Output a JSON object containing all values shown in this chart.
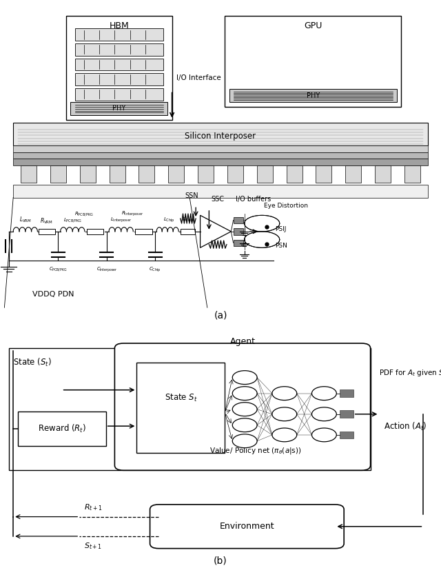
{
  "bg_color": "#ffffff",
  "fig_width": 6.4,
  "fig_height": 8.24,
  "part_a_label": "(a)",
  "part_b_label": "(b)",
  "hbm": "HBM",
  "gpu": "GPU",
  "io_interface": "I/O Interface",
  "phy": "PHY",
  "silicon_interposer": "Silicon Interposer",
  "vddq_pdn": "VDDQ PDN",
  "ssn": "SSN",
  "ssc": "SSC",
  "io_buffers": "I/O buffers",
  "eye_distortion": "Eye Distortion",
  "psij": "PSIJ",
  "psn": "PSN",
  "agent": "Agent",
  "state_input": "State ($S_t$)",
  "reward_input": "Reward ($R_t$)",
  "state_st": "State $S_t$",
  "policy_net": "Value/ Policy net ($\\pi_\\theta(a|s)$)",
  "pdf": "PDF for $A_t$ given $S_t$",
  "action": "Action ($A_t$)",
  "environment": "Environment",
  "r_next": "$R_{t+1}$",
  "s_next": "$S_{t+1}$"
}
